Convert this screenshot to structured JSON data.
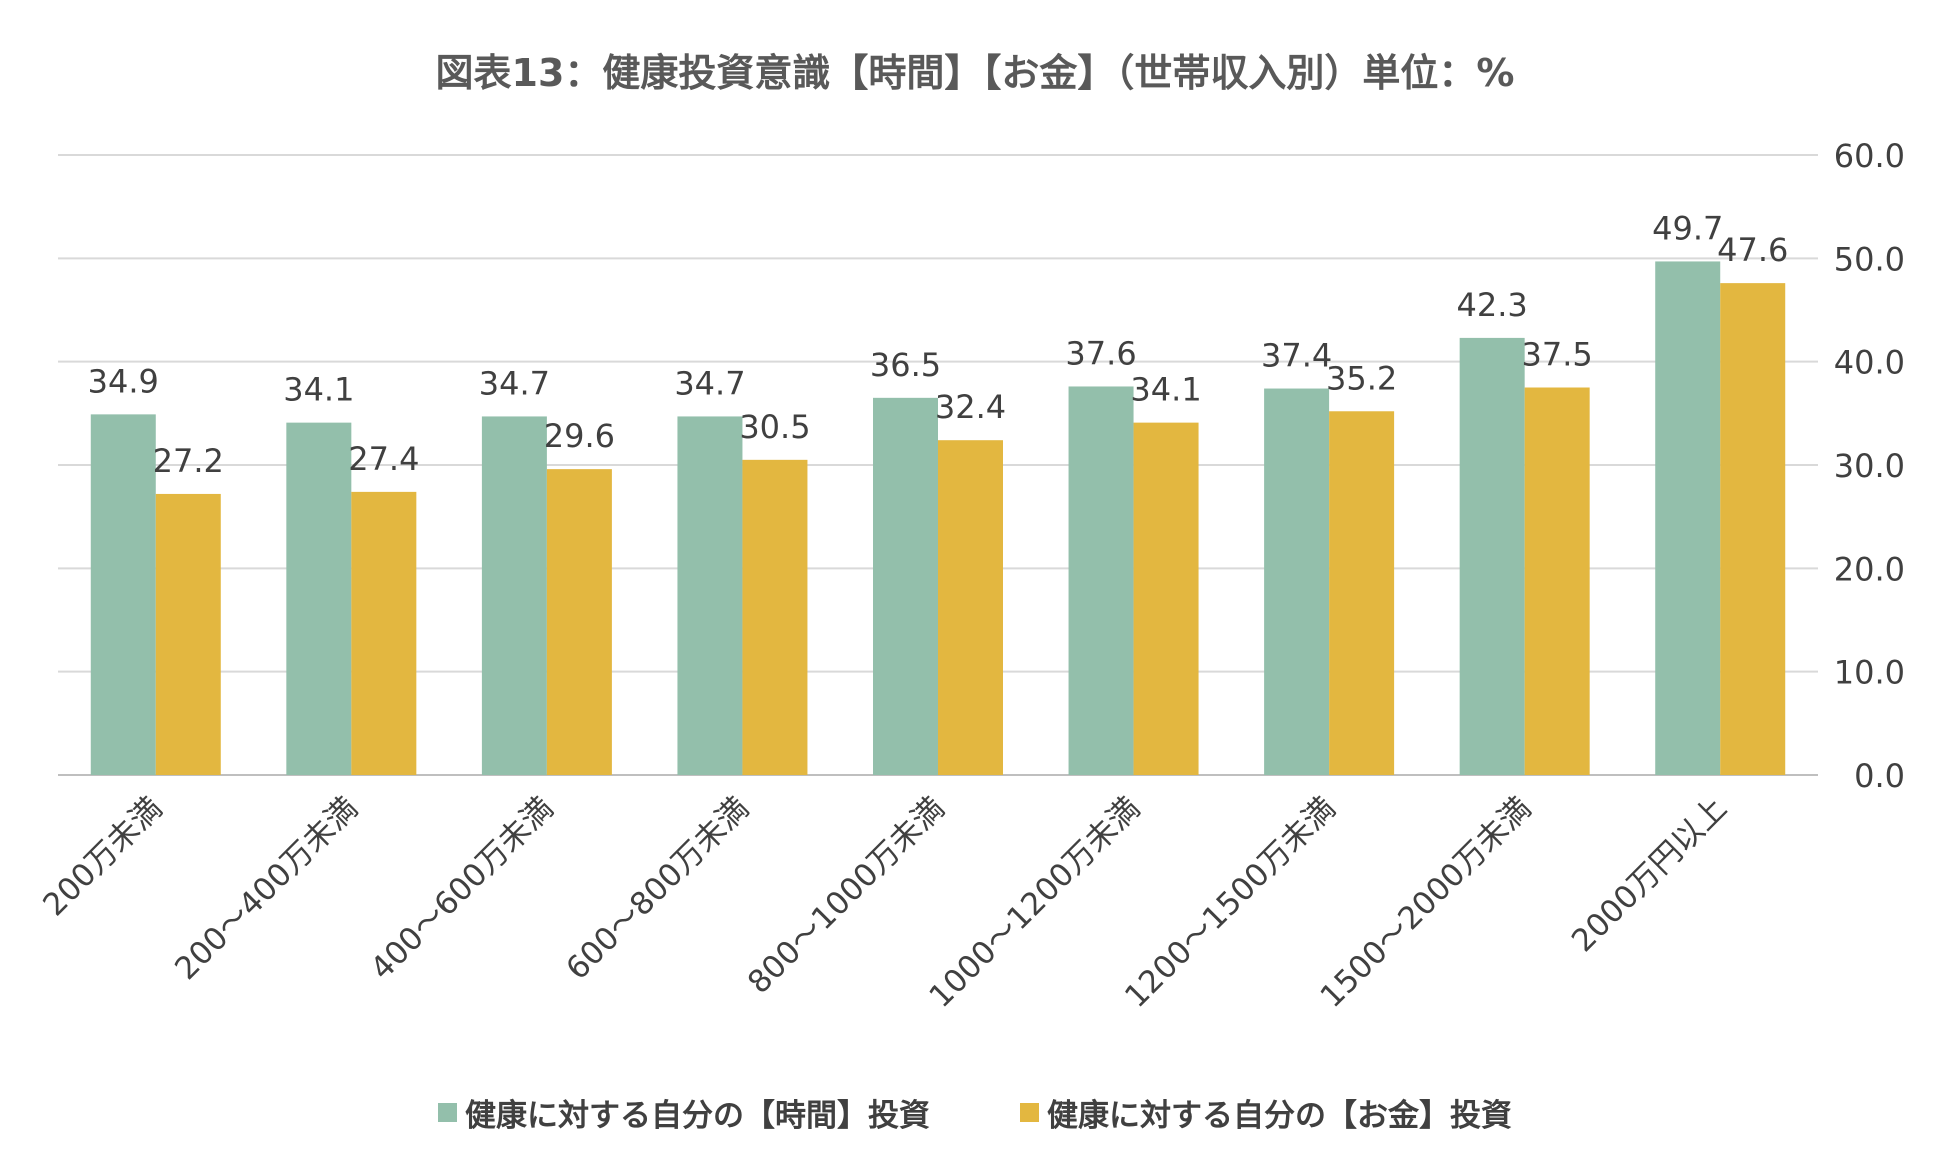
{
  "chart_data": {
    "type": "bar",
    "title": "図表13：健康投資意識【時間】【お金】（世帯収入別）単位：%",
    "categories": [
      "200万未満",
      "200～400万未満",
      "400～600万未満",
      "600～800万未満",
      "800～1000万未満",
      "1000～1200万未満",
      "1200～1500万未満",
      "1500～2000万未満",
      "2000万円以上"
    ],
    "series": [
      {
        "name": "健康に対する自分の【時間】投資",
        "color": "#93bfab",
        "values": [
          34.9,
          34.1,
          34.7,
          34.7,
          36.5,
          37.6,
          37.4,
          42.3,
          49.7
        ],
        "labels": [
          "34.9",
          "34.1",
          "34.7",
          "34.7",
          "36.5",
          "37.6",
          "37.4",
          "42.3",
          "49.7"
        ]
      },
      {
        "name": "健康に対する自分の【お金】投資",
        "color": "#e3b740",
        "values": [
          27.2,
          27.4,
          29.6,
          30.5,
          32.4,
          34.1,
          35.2,
          37.5,
          47.6
        ],
        "labels": [
          "27.2",
          "27.4",
          "29.6",
          "30.5",
          "32.4",
          "34.1",
          "35.2",
          "37.5",
          "47.6"
        ]
      }
    ],
    "y_ticks": [
      "0.0",
      "10.0",
      "20.0",
      "30.0",
      "40.0",
      "50.0",
      "60.0"
    ],
    "ylim": [
      0,
      60
    ],
    "y_axis_side": "right",
    "grid": true,
    "legend_position": "bottom",
    "xlabel": "",
    "ylabel": ""
  }
}
